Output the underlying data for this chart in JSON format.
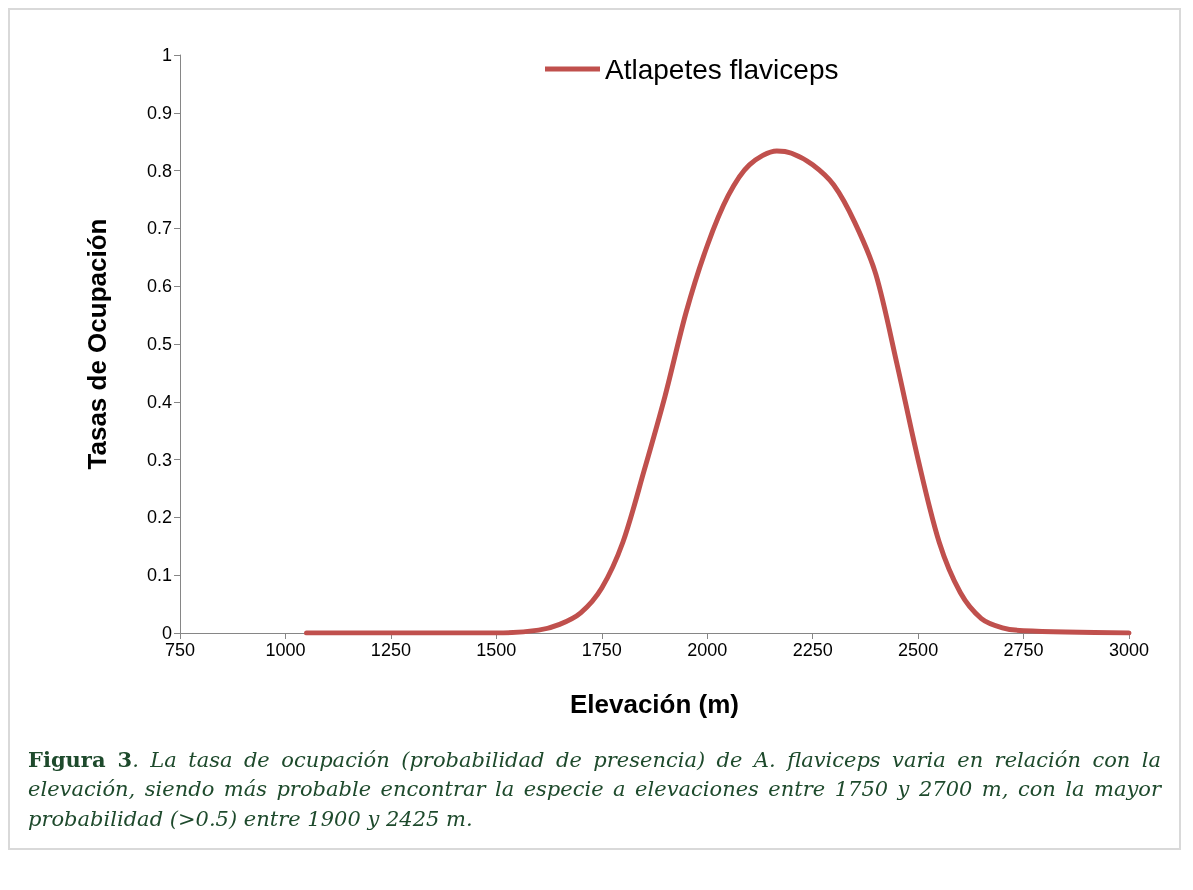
{
  "chart_data": {
    "type": "line",
    "xlabel": "Elevación (m)",
    "ylabel": "Tasas de Ocupación",
    "series": [
      {
        "name": "Atlapetes flaviceps",
        "color": "#c0504d",
        "x": [
          1050,
          1250,
          1500,
          1600,
          1650,
          1700,
          1750,
          1800,
          1850,
          1900,
          1950,
          2000,
          2050,
          2100,
          2165,
          2200,
          2250,
          2300,
          2350,
          2400,
          2450,
          2500,
          2550,
          2600,
          2650,
          2700,
          2750,
          3000
        ],
        "values": [
          0,
          0,
          0,
          0.005,
          0.015,
          0.035,
          0.078,
          0.157,
          0.28,
          0.41,
          0.555,
          0.67,
          0.757,
          0.81,
          0.834,
          0.83,
          0.81,
          0.775,
          0.71,
          0.62,
          0.465,
          0.3,
          0.157,
          0.07,
          0.025,
          0.009,
          0.004,
          0
        ]
      }
    ],
    "xlim": [
      750,
      3000
    ],
    "xticks": [
      750,
      1000,
      1250,
      1500,
      1750,
      2000,
      2250,
      2500,
      2750,
      3000
    ],
    "ylim": [
      0,
      1
    ],
    "yticks": [
      0,
      0.1,
      0.2,
      0.3,
      0.4,
      0.5,
      0.6,
      0.7,
      0.8,
      0.9,
      1
    ],
    "grid": false,
    "legend": "top",
    "marker": "none",
    "line_style": "solid",
    "annotations": [
      "Figura 3. La tasa de ocupación (probabilidad de presencia) de A. flaviceps varia en relación con la elevación, siendo más probable encontrar la especie a elevaciones entre 1750 y 2700 m, con la mayor probabilidad (>0.5) entre 1900 y 2425 m."
    ]
  }
}
